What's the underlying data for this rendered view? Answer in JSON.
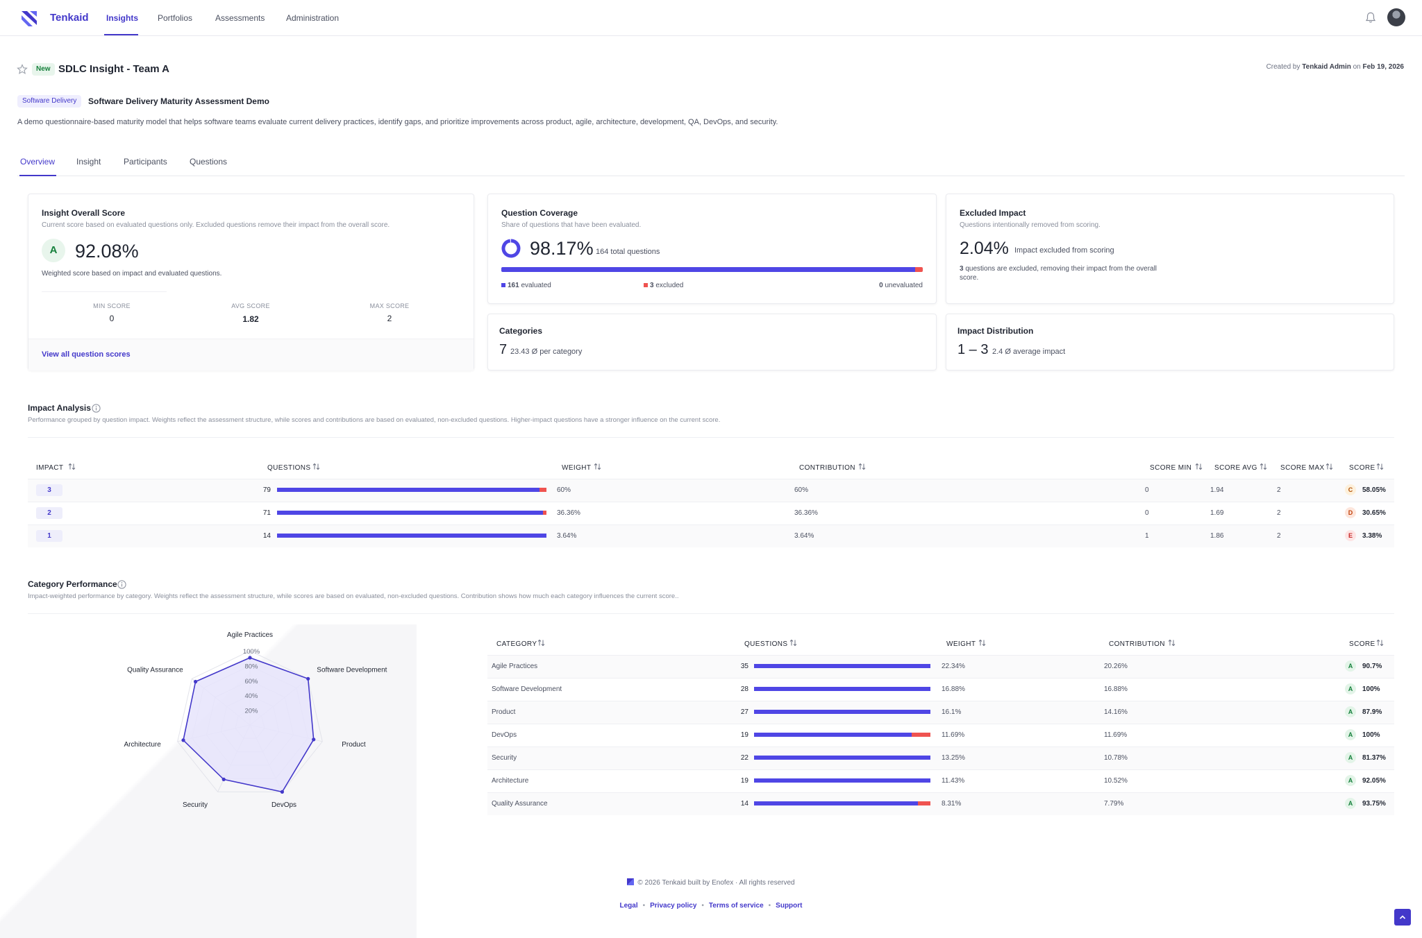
{
  "nav": {
    "brand": "Tenkaid",
    "links": [
      "Insights",
      "Portfolios",
      "Assessments",
      "Administration"
    ]
  },
  "header": {
    "new_badge": "New",
    "title": "SDLC Insight - Team A",
    "created_prefix": "Created by",
    "created_by": "Tenkaid Admin",
    "created_on_word": "on",
    "created_date": "Feb 19, 2026",
    "type_badge": "Software Delivery",
    "model_name": "Software Delivery Maturity Assessment Demo",
    "description": "A demo questionnaire-based maturity model that helps software teams evaluate current delivery practices, identify gaps, and prioritize improvements across product, agile, architecture, development, QA, DevOps, and security."
  },
  "tabs": [
    "Overview",
    "Insight",
    "Participants",
    "Questions"
  ],
  "overall": {
    "title": "Insight Overall Score",
    "subtitle": "Current score based on evaluated questions only. Excluded questions remove their impact from the overall score.",
    "grade": "A",
    "score": "92.08%",
    "note": "Weighted score based on impact and evaluated questions.",
    "min_label": "MIN SCORE",
    "min_value": "0",
    "avg_label": "AVG SCORE",
    "avg_value": "1.82",
    "max_label": "MAX SCORE",
    "max_value": "2",
    "link": "View all question scores"
  },
  "coverage": {
    "title": "Question Coverage",
    "subtitle": "Share of questions that have been evaluated.",
    "value": "98.17%",
    "total": "164 total questions",
    "fraction": 0.9817,
    "evaluated_num": "161",
    "evaluated_label": "evaluated",
    "excluded_num": "3",
    "excluded_label": "excluded",
    "unevaluated_num": "0",
    "unevaluated_label": "unevaluated"
  },
  "excluded": {
    "title": "Excluded Impact",
    "subtitle": "Questions intentionally removed from scoring.",
    "value": "2.04%",
    "value_label": "Impact excluded from scoring",
    "note_num": "3",
    "note": "questions are excluded, removing their impact from the overall score."
  },
  "categories_card": {
    "title": "Categories",
    "value": "7",
    "note": "23.43 Ø per category"
  },
  "impact_dist": {
    "title": "Impact Distribution",
    "value": "1 – 3",
    "note": "2.4 Ø average impact"
  },
  "impact_analysis": {
    "title": "Impact Analysis",
    "subtitle": "Performance grouped by question impact. Weights reflect the assessment structure, while scores and contributions are based on evaluated, non-excluded questions. Higher-impact questions have a stronger influence on the current score.",
    "headers": [
      "IMPACT",
      "QUESTIONS",
      "WEIGHT",
      "CONTRIBUTION",
      "SCORE MIN",
      "SCORE AVG",
      "SCORE MAX",
      "SCORE"
    ],
    "rows": [
      {
        "impact": "3",
        "questions": "79",
        "evaluated_fraction": 0.975,
        "weight": "60%",
        "contribution": "60%",
        "min": "0",
        "avg": "1.94",
        "max": "2",
        "grade": "C",
        "score": "58.05%"
      },
      {
        "impact": "2",
        "questions": "71",
        "evaluated_fraction": 0.986,
        "weight": "36.36%",
        "contribution": "36.36%",
        "min": "0",
        "avg": "1.69",
        "max": "2",
        "grade": "D",
        "score": "30.65%"
      },
      {
        "impact": "1",
        "questions": "14",
        "evaluated_fraction": 1.0,
        "weight": "3.64%",
        "contribution": "3.64%",
        "min": "1",
        "avg": "1.86",
        "max": "2",
        "grade": "E",
        "score": "3.38%"
      }
    ]
  },
  "category_perf": {
    "title": "Category Performance",
    "subtitle": "Impact-weighted performance by category. Weights reflect the assessment structure, while scores are based on evaluated, non-excluded questions. Contribution shows how much each category influences the current score..",
    "headers": [
      "CATEGORY",
      "QUESTIONS",
      "WEIGHT",
      "CONTRIBUTION",
      "SCORE"
    ],
    "rows": [
      {
        "category": "Agile Practices",
        "questions": "35",
        "evaluated_fraction": 1.0,
        "weight": "22.34%",
        "contribution": "20.26%",
        "grade": "A",
        "score": "90.7%"
      },
      {
        "category": "Software Development",
        "questions": "28",
        "evaluated_fraction": 1.0,
        "weight": "16.88%",
        "contribution": "16.88%",
        "grade": "A",
        "score": "100%"
      },
      {
        "category": "Product",
        "questions": "27",
        "evaluated_fraction": 1.0,
        "weight": "16.1%",
        "contribution": "14.16%",
        "grade": "A",
        "score": "87.9%"
      },
      {
        "category": "DevOps",
        "questions": "19",
        "evaluated_fraction": 0.895,
        "weight": "11.69%",
        "contribution": "11.69%",
        "grade": "A",
        "score": "100%"
      },
      {
        "category": "Security",
        "questions": "22",
        "evaluated_fraction": 1.0,
        "weight": "13.25%",
        "contribution": "10.78%",
        "grade": "A",
        "score": "81.37%"
      },
      {
        "category": "Architecture",
        "questions": "19",
        "evaluated_fraction": 1.0,
        "weight": "11.43%",
        "contribution": "10.52%",
        "grade": "A",
        "score": "92.05%"
      },
      {
        "category": "Quality Assurance",
        "questions": "14",
        "evaluated_fraction": 0.929,
        "weight": "8.31%",
        "contribution": "7.79%",
        "grade": "A",
        "score": "93.75%"
      }
    ]
  },
  "chart_data": {
    "type": "radar",
    "axes": [
      "Agile Practices",
      "Software Development",
      "Product",
      "DevOps",
      "Security",
      "Architecture",
      "Quality Assurance"
    ],
    "values": [
      90.7,
      100,
      87.9,
      100,
      81.37,
      92.05,
      93.75
    ],
    "tick_labels": [
      "100%",
      "80%",
      "60%",
      "40%",
      "20%"
    ],
    "range": [
      0,
      100
    ],
    "fill_color": "#e6e4fb",
    "line_color": "#4338ca"
  },
  "colors": {
    "accent": "#4338ca",
    "bar": "#4f46e5",
    "excluded": "#ef5350",
    "grade_A": "#16803c",
    "grade_C": "#b45309",
    "grade_D": "#c2410c",
    "grade_E": "#c62828"
  },
  "footer": {
    "copyright": "© 2026 Tenkaid built by Enofex · All rights reserved",
    "links": [
      "Legal",
      "Privacy policy",
      "Terms of service",
      "Support"
    ]
  }
}
